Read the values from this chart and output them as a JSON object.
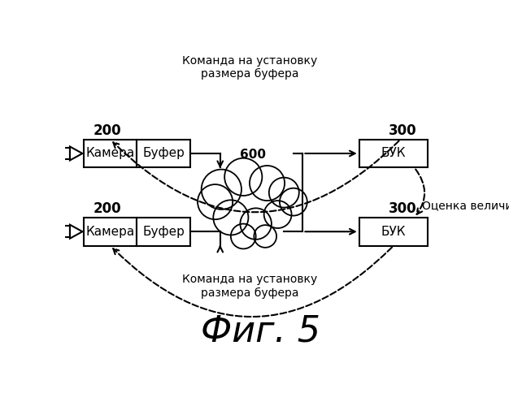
{
  "bg_color": "#ffffff",
  "title": "Фиг. 5",
  "title_fontsize": 32,
  "top_label": "Команда на установку\nразмера буфера",
  "bottom_label": "Команда на установку\nразмера буфера",
  "right_label": "Оценка величины задержки",
  "cloud_label": "600",
  "label_200_top": "200",
  "label_200_bot": "200",
  "label_300_top": "300",
  "label_300_bot": "300",
  "cam_label": "Камера",
  "buf_label": "Буфер",
  "buk_label": "БУК",
  "font_main": 11,
  "font_label": 10,
  "font_bold": 12
}
